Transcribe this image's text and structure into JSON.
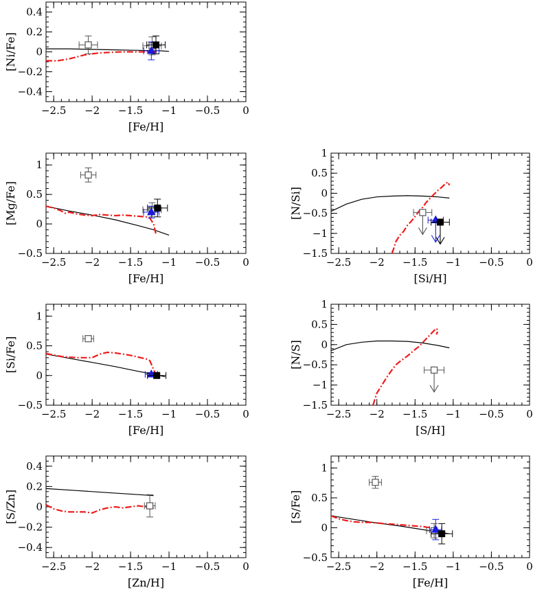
{
  "figure": {
    "colors": {
      "model_solid": "#000000",
      "model_dashdot": "#ee1c1c",
      "filled_square": "#000000",
      "open_square": "#555555",
      "triangle": "#1a1adc"
    }
  },
  "chart_data": [
    {
      "type": "scatter",
      "xlabel": "[Fe/H]",
      "ylabel": "[Ni/Fe]",
      "xlim": [
        -2.6,
        0
      ],
      "ylim": [
        -0.5,
        0.5
      ],
      "xticks": [
        -2.5,
        -2,
        -1.5,
        -1,
        -0.5,
        0
      ],
      "xtick_labels": [
        "−2.5",
        "−2",
        "−1.5",
        "−1",
        "−0.5",
        "0"
      ],
      "yticks": [
        -0.4,
        -0.2,
        0,
        0.2,
        0.4
      ],
      "ytick_labels": [
        "−0.4",
        "−0.2",
        "0",
        "0.2",
        "0.4"
      ],
      "series": [
        {
          "marker": "line-solid",
          "x": [
            -2.6,
            -2.3,
            -2.0,
            -1.7,
            -1.4,
            -1.1,
            -1.0
          ],
          "y": [
            0.03,
            0.03,
            0.025,
            0.02,
            0.015,
            0.01,
            0.005
          ]
        },
        {
          "marker": "line-dashdot",
          "x": [
            -2.6,
            -2.45,
            -2.3,
            -2.2,
            -2.1,
            -2.0,
            -1.9,
            -1.75,
            -1.6,
            -1.5,
            -1.4,
            -1.3,
            -1.2,
            -1.15
          ],
          "y": [
            -0.09,
            -0.09,
            -0.07,
            -0.05,
            -0.03,
            -0.02,
            -0.01,
            -0.005,
            0.0,
            0.0,
            0.0,
            0.0,
            0.0,
            0.0
          ]
        },
        {
          "marker": "open-square",
          "points": [
            {
              "x": -2.05,
              "y": 0.07,
              "xerr": 0.12,
              "yerr": 0.09
            },
            {
              "x": -1.22,
              "y": 0.06,
              "xerr": 0.12,
              "yerr": 0.09
            }
          ]
        },
        {
          "marker": "triangle",
          "points": [
            {
              "x": -1.23,
              "y": 0.01,
              "xerr": 0.1,
              "yerr": 0.09
            }
          ]
        },
        {
          "marker": "filled-square",
          "points": [
            {
              "x": -1.17,
              "y": 0.07,
              "xerr": 0.12,
              "yerr": 0.09
            }
          ]
        }
      ]
    },
    {
      "type": "scatter",
      "xlabel": "[Fe/H]",
      "ylabel": "[Mg/Fe]",
      "xlim": [
        -2.6,
        0
      ],
      "ylim": [
        -0.5,
        1.2
      ],
      "xticks": [
        -2.5,
        -2,
        -1.5,
        -1,
        -0.5,
        0
      ],
      "xtick_labels": [
        "−2.5",
        "−2",
        "−1.5",
        "−1",
        "−0.5",
        "0"
      ],
      "yticks": [
        -0.5,
        0,
        0.5,
        1
      ],
      "ytick_labels": [
        "−0.5",
        "0",
        "0.5",
        "1"
      ],
      "series": [
        {
          "marker": "line-solid",
          "x": [
            -2.6,
            -2.3,
            -2.0,
            -1.7,
            -1.4,
            -1.2,
            -1.0
          ],
          "y": [
            0.3,
            0.22,
            0.15,
            0.07,
            -0.03,
            -0.1,
            -0.19
          ]
        },
        {
          "marker": "line-dashdot",
          "x": [
            -2.6,
            -2.5,
            -2.4,
            -2.35,
            -2.3,
            -2.2,
            -2.1,
            -2.0,
            -1.9,
            -1.8,
            -1.7,
            -1.6,
            -1.5,
            -1.4,
            -1.3,
            -1.25,
            -1.2,
            -1.17
          ],
          "y": [
            0.3,
            0.27,
            0.22,
            0.18,
            0.2,
            0.17,
            0.15,
            0.14,
            0.16,
            0.15,
            0.14,
            0.15,
            0.14,
            0.13,
            0.12,
            0.1,
            0.0,
            -0.18
          ]
        },
        {
          "marker": "open-square",
          "points": [
            {
              "x": -2.05,
              "y": 0.83,
              "xerr": 0.1,
              "yerr": 0.12
            },
            {
              "x": -1.22,
              "y": 0.24,
              "xerr": 0.12,
              "yerr": 0.12
            }
          ]
        },
        {
          "marker": "triangle",
          "points": [
            {
              "x": -1.23,
              "y": 0.2,
              "xerr": 0.1,
              "yerr": 0.1
            }
          ]
        },
        {
          "marker": "filled-square",
          "points": [
            {
              "x": -1.15,
              "y": 0.27,
              "xerr": 0.13,
              "yerr": 0.15
            }
          ]
        }
      ]
    },
    {
      "type": "scatter",
      "xlabel": "[Si/H]",
      "ylabel": "[N/Si]",
      "xlim": [
        -2.6,
        0
      ],
      "ylim": [
        -1.5,
        1
      ],
      "xticks": [
        -2.5,
        -2,
        -1.5,
        -1,
        -0.5,
        0
      ],
      "xtick_labels": [
        "−2.5",
        "−2",
        "−1.5",
        "−1",
        "−0.5",
        "0"
      ],
      "yticks": [
        -1.5,
        -1,
        -0.5,
        0,
        0.5,
        1
      ],
      "ytick_labels": [
        "−1.5",
        "−1",
        "−0.5",
        "0",
        "0.5",
        "1"
      ],
      "series": [
        {
          "marker": "line-solid",
          "x": [
            -2.6,
            -2.4,
            -2.2,
            -2.0,
            -1.8,
            -1.6,
            -1.4,
            -1.2,
            -1.05
          ],
          "y": [
            -0.45,
            -0.27,
            -0.15,
            -0.09,
            -0.07,
            -0.06,
            -0.07,
            -0.09,
            -0.12
          ]
        },
        {
          "marker": "line-dashdot",
          "x": [
            -1.8,
            -1.75,
            -1.7,
            -1.65,
            -1.6,
            -1.55,
            -1.5,
            -1.45,
            -1.4,
            -1.35,
            -1.3,
            -1.25,
            -1.2,
            -1.15,
            -1.1,
            -1.07,
            -1.05
          ],
          "y": [
            -1.5,
            -1.2,
            -1.05,
            -0.95,
            -0.8,
            -0.7,
            -0.58,
            -0.45,
            -0.35,
            -0.22,
            -0.12,
            -0.02,
            0.07,
            0.15,
            0.24,
            0.28,
            0.2
          ]
        },
        {
          "marker": "open-square",
          "upper_limit": true,
          "points": [
            {
              "x": -1.4,
              "y": -0.48,
              "xerr": 0.12,
              "yerr": 0.0
            }
          ]
        },
        {
          "marker": "triangle",
          "upper_limit": true,
          "points": [
            {
              "x": -1.23,
              "y": -0.67,
              "xerr": 0.1,
              "yerr": 0.0
            }
          ]
        },
        {
          "marker": "filled-square",
          "upper_limit": true,
          "points": [
            {
              "x": -1.17,
              "y": -0.72,
              "xerr": 0.12,
              "yerr": 0.0
            }
          ]
        }
      ]
    },
    {
      "type": "scatter",
      "xlabel": "[Fe/H]",
      "ylabel": "[Si/Fe]",
      "xlim": [
        -2.6,
        0
      ],
      "ylim": [
        -0.5,
        1.2
      ],
      "xticks": [
        -2.5,
        -2,
        -1.5,
        -1,
        -0.5,
        0
      ],
      "xtick_labels": [
        "−2.5",
        "−2",
        "−1.5",
        "−1",
        "−0.5",
        "0"
      ],
      "yticks": [
        -0.5,
        0,
        0.5,
        1
      ],
      "ytick_labels": [
        "−0.5",
        "0",
        "0.5",
        "1"
      ],
      "series": [
        {
          "marker": "line-solid",
          "x": [
            -2.6,
            -2.3,
            -2.0,
            -1.7,
            -1.4,
            -1.2,
            -1.05
          ],
          "y": [
            0.36,
            0.29,
            0.22,
            0.15,
            0.07,
            0.02,
            -0.02
          ]
        },
        {
          "marker": "line-dashdot",
          "x": [
            -2.6,
            -2.4,
            -2.2,
            -2.0,
            -1.9,
            -1.8,
            -1.7,
            -1.6,
            -1.5,
            -1.4,
            -1.3,
            -1.25,
            -1.2,
            -1.17
          ],
          "y": [
            0.37,
            0.32,
            0.3,
            0.3,
            0.36,
            0.39,
            0.38,
            0.36,
            0.34,
            0.31,
            0.28,
            0.25,
            0.1,
            0.0
          ]
        },
        {
          "marker": "open-square",
          "points": [
            {
              "x": -2.05,
              "y": 0.62,
              "xerr": 0.07,
              "yerr": 0.02
            }
          ]
        },
        {
          "marker": "triangle",
          "points": [
            {
              "x": -1.23,
              "y": 0.02,
              "xerr": 0.08,
              "yerr": 0.03
            }
          ]
        },
        {
          "marker": "filled-square",
          "points": [
            {
              "x": -1.16,
              "y": 0.0,
              "xerr": 0.12,
              "yerr": 0.03
            }
          ]
        }
      ]
    },
    {
      "type": "scatter",
      "xlabel": "[S/H]",
      "ylabel": "[N/S]",
      "xlim": [
        -2.6,
        0
      ],
      "ylim": [
        -1.5,
        1
      ],
      "xticks": [
        -2.5,
        -2,
        -1.5,
        -1,
        -0.5,
        0
      ],
      "xtick_labels": [
        "−2.5",
        "−2",
        "−1.5",
        "−1",
        "−0.5",
        "0"
      ],
      "yticks": [
        -1.5,
        -1,
        -0.5,
        0,
        0.5,
        1
      ],
      "ytick_labels": [
        "−1.5",
        "−1",
        "−0.5",
        "0",
        "0.5",
        "1"
      ],
      "series": [
        {
          "marker": "line-solid",
          "x": [
            -2.6,
            -2.4,
            -2.2,
            -2.0,
            -1.8,
            -1.6,
            -1.4,
            -1.2,
            -1.05
          ],
          "y": [
            -0.15,
            0.0,
            0.06,
            0.09,
            0.09,
            0.08,
            0.04,
            -0.02,
            -0.08
          ]
        },
        {
          "marker": "line-dashdot",
          "x": [
            -2.05,
            -2.0,
            -1.95,
            -1.9,
            -1.85,
            -1.8,
            -1.75,
            -1.7,
            -1.65,
            -1.6,
            -1.55,
            -1.5,
            -1.45,
            -1.4,
            -1.35,
            -1.3,
            -1.25,
            -1.22,
            -1.2,
            -1.22
          ],
          "y": [
            -1.5,
            -1.2,
            -1.05,
            -0.9,
            -0.75,
            -0.62,
            -0.5,
            -0.42,
            -0.35,
            -0.28,
            -0.2,
            -0.12,
            -0.05,
            0.05,
            0.15,
            0.25,
            0.35,
            0.4,
            0.35,
            0.25
          ]
        },
        {
          "marker": "open-square",
          "upper_limit": true,
          "points": [
            {
              "x": -1.25,
              "y": -0.63,
              "xerr": 0.13,
              "yerr": 0.0
            }
          ]
        }
      ]
    },
    {
      "type": "scatter",
      "xlabel": "[Zn/H]",
      "ylabel": "[S/Zn]",
      "xlim": [
        -2.6,
        0
      ],
      "ylim": [
        -0.5,
        0.5
      ],
      "xticks": [
        -2.5,
        -2,
        -1.5,
        -1,
        -0.5,
        0
      ],
      "xtick_labels": [
        "−2.5",
        "−2",
        "−1.5",
        "−1",
        "−0.5",
        "0"
      ],
      "yticks": [
        -0.4,
        -0.2,
        0,
        0.2,
        0.4
      ],
      "ytick_labels": [
        "−0.4",
        "−0.2",
        "0",
        "0.2",
        "0.4"
      ],
      "series": [
        {
          "marker": "line-solid",
          "x": [
            -2.6,
            -2.2,
            -1.8,
            -1.4,
            -1.2
          ],
          "y": [
            0.18,
            0.16,
            0.14,
            0.12,
            0.11
          ]
        },
        {
          "marker": "line-dashdot",
          "x": [
            -2.6,
            -2.5,
            -2.4,
            -2.3,
            -2.2,
            -2.1,
            -2.0,
            -1.9,
            -1.8,
            -1.7,
            -1.6,
            -1.5,
            -1.4,
            -1.3,
            -1.25,
            -1.2
          ],
          "y": [
            0.02,
            -0.02,
            -0.04,
            -0.05,
            -0.05,
            -0.05,
            -0.06,
            -0.03,
            -0.01,
            0.0,
            -0.01,
            0.0,
            0.01,
            0.0,
            -0.02,
            -0.01
          ]
        },
        {
          "marker": "open-square",
          "points": [
            {
              "x": -1.25,
              "y": 0.01,
              "xerr": 0.07,
              "yerr": 0.11
            }
          ]
        }
      ]
    },
    {
      "type": "scatter",
      "xlabel": "[Fe/H]",
      "ylabel": "[S/Fe]",
      "xlim": [
        -2.6,
        0
      ],
      "ylim": [
        -0.5,
        1.2
      ],
      "xticks": [
        -2.5,
        -2,
        -1.5,
        -1,
        -0.5,
        0
      ],
      "xtick_labels": [
        "−2.5",
        "−2",
        "−1.5",
        "−1",
        "−0.5",
        "0"
      ],
      "yticks": [
        -0.5,
        0,
        0.5,
        1
      ],
      "ytick_labels": [
        "−0.5",
        "0",
        "0.5",
        "1"
      ],
      "series": [
        {
          "marker": "line-solid",
          "x": [
            -2.6,
            -2.3,
            -2.0,
            -1.7,
            -1.4,
            -1.2,
            -1.05
          ],
          "y": [
            0.2,
            0.14,
            0.08,
            0.03,
            -0.03,
            -0.07,
            -0.1
          ]
        },
        {
          "marker": "line-dashdot",
          "x": [
            -2.6,
            -2.5,
            -2.4,
            -2.3,
            -2.2,
            -2.1,
            -2.0,
            -1.9,
            -1.8,
            -1.7,
            -1.6,
            -1.5,
            -1.4,
            -1.3,
            -1.25,
            -1.2,
            -1.15
          ],
          "y": [
            0.2,
            0.15,
            0.12,
            0.1,
            0.09,
            0.09,
            0.08,
            0.07,
            0.06,
            0.05,
            0.04,
            0.03,
            0.02,
            0.0,
            -0.05,
            -0.08,
            -0.08
          ]
        },
        {
          "marker": "open-square",
          "points": [
            {
              "x": -2.02,
              "y": 0.76,
              "xerr": 0.08,
              "yerr": 0.1
            },
            {
              "x": -1.25,
              "y": -0.05,
              "xerr": 0.1,
              "yerr": 0.12
            }
          ]
        },
        {
          "marker": "triangle",
          "points": [
            {
              "x": -1.23,
              "y": -0.03,
              "xerr": 0.08,
              "yerr": 0.17
            }
          ]
        },
        {
          "marker": "filled-square",
          "points": [
            {
              "x": -1.15,
              "y": -0.1,
              "xerr": 0.14,
              "yerr": 0.17
            }
          ]
        }
      ]
    }
  ]
}
